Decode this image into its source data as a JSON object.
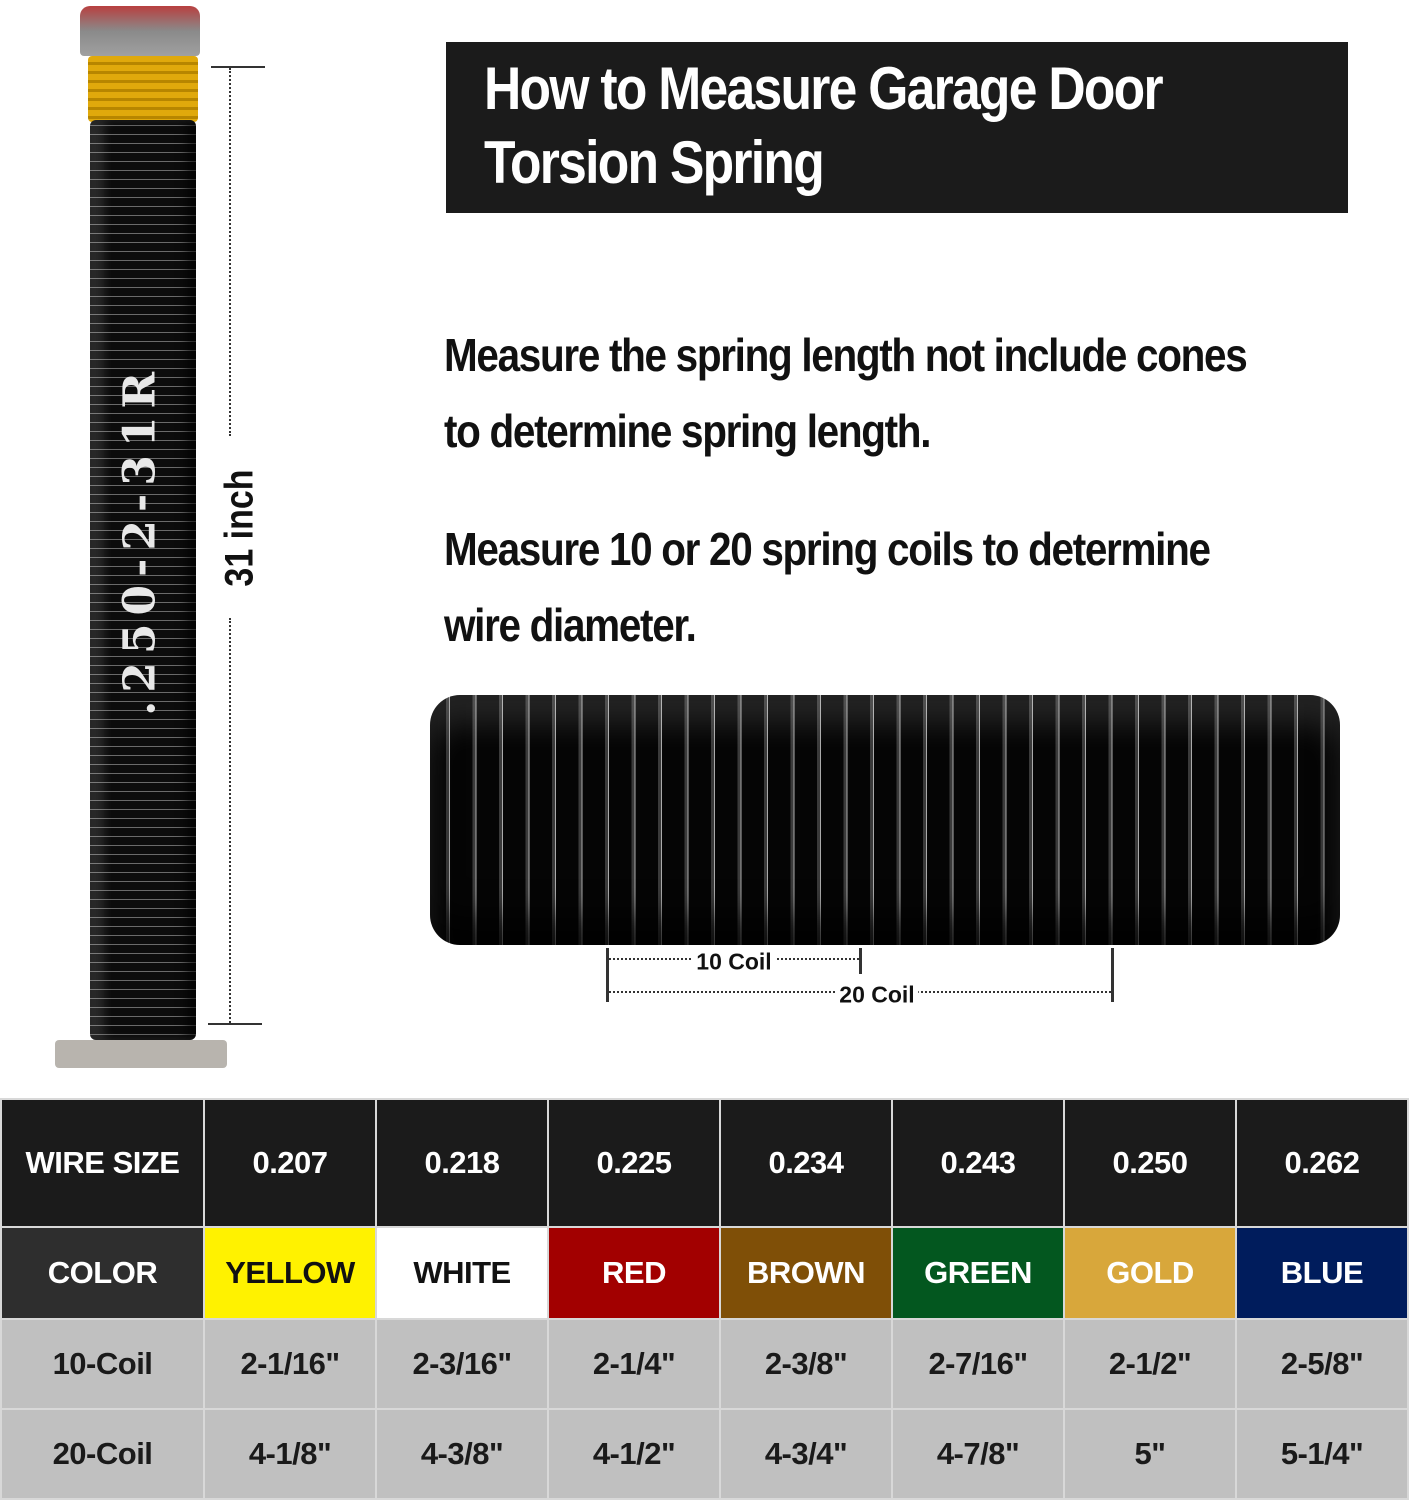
{
  "title": {
    "line1": "How to Measure Garage Door",
    "line2": "Torsion Spring"
  },
  "instructions": [
    {
      "line1": "Measure the spring length not include cones",
      "line2": "to determine spring length."
    },
    {
      "line1": "Measure 10 or 20 spring coils to determine",
      "line2": "wire diameter."
    }
  ],
  "spring_photo": {
    "stamp": ".250-2-31R",
    "length_label": "31 inch",
    "cone_color": "#e0a90c"
  },
  "coil_photo": {
    "ten_label": "10 Coil",
    "twenty_label": "20 Coil"
  },
  "table": {
    "headers": [
      "WIRE SIZE",
      "0.207",
      "0.218",
      "0.225",
      "0.234",
      "0.243",
      "0.250",
      "0.262"
    ],
    "color_row": {
      "label": "COLOR",
      "names": [
        "YELLOW",
        "WHITE",
        "RED",
        "BROWN",
        "GREEN",
        "GOLD",
        "BLUE"
      ],
      "bg": [
        "#fff200",
        "#ffffff",
        "#a20000",
        "#7f4f07",
        "#03571f",
        "#d8a73b",
        "#001c5c"
      ],
      "fg": [
        "#111111",
        "#111111",
        "#ffffff",
        "#ffffff",
        "#ffffff",
        "#ffffff",
        "#ffffff"
      ],
      "label_bg": "#2e2e2e"
    },
    "ten_coil": {
      "label": "10-Coil",
      "values": [
        "2-1/16\"",
        "2-3/16\"",
        "2-1/4\"",
        "2-3/8\"",
        "2-7/16\"",
        "2-1/2\"",
        "2-5/8\""
      ]
    },
    "twenty_coil": {
      "label": "20-Coil",
      "values": [
        "4-1/8\"",
        "4-3/8\"",
        "4-1/2\"",
        "4-3/4\"",
        "4-7/8\"",
        "5\"",
        "5-1/4\""
      ]
    }
  }
}
